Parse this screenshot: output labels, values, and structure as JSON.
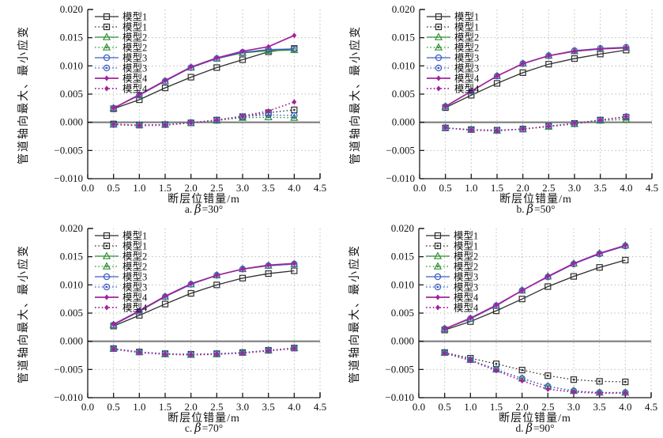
{
  "figure": {
    "y_axis_label": "管道轴向最大、最小应变",
    "x_axis_label": "断层位错量/m",
    "background": "#ffffff",
    "colors": {
      "model1": "#2d2d2d",
      "model2": "#2e9235",
      "model3": "#3c5cc5",
      "model4": "#a1249c",
      "grid": "#bcbcbc",
      "zero_line": "#7d7d7d",
      "axis": "#1a1a1a",
      "text": "#111111"
    }
  },
  "chart_data": {
    "type": "line",
    "x": [
      0.5,
      1.0,
      1.5,
      2.0,
      2.5,
      3.0,
      3.5,
      4.0
    ],
    "xlim": [
      0.0,
      4.5
    ],
    "ylim": [
      -0.01,
      0.02
    ],
    "x_tick_values": [
      0.0,
      0.5,
      1.0,
      1.5,
      2.0,
      2.5,
      3.0,
      3.5,
      4.0,
      4.5
    ],
    "x_tick_labels": [
      "0.0",
      "0.5",
      "1.0",
      "1.5",
      "2.0",
      "2.5",
      "3.0",
      "3.5",
      "4.0",
      "4.5"
    ],
    "y_tick_values": [
      -0.01,
      -0.005,
      0.0,
      0.005,
      0.01,
      0.015,
      0.02
    ],
    "y_tick_labels": [
      "−0.010",
      "−0.005",
      "0.000",
      "0.005",
      "0.010",
      "0.015",
      "0.020"
    ],
    "x_grid": [
      0.5,
      1.0,
      1.5,
      2.0,
      2.5,
      3.0,
      3.5,
      4.0,
      4.5
    ],
    "y_grid": [
      -0.005,
      0.005,
      0.01,
      0.015
    ],
    "grid_on": true,
    "legend_position": "top-left-inside",
    "series_styles": [
      {
        "name": "模型1",
        "color": "#2d2d2d",
        "dash": false,
        "marker": "square"
      },
      {
        "name": "模型1",
        "color": "#2d2d2d",
        "dash": true,
        "marker": "square-dot"
      },
      {
        "name": "模型2",
        "color": "#2e9235",
        "dash": false,
        "marker": "triangle"
      },
      {
        "name": "模型2",
        "color": "#2e9235",
        "dash": true,
        "marker": "triangle-dot"
      },
      {
        "name": "模型3",
        "color": "#3c5cc5",
        "dash": false,
        "marker": "circle"
      },
      {
        "name": "模型3",
        "color": "#3c5cc5",
        "dash": true,
        "marker": "circle-dot"
      },
      {
        "name": "模型4",
        "color": "#a1249c",
        "dash": false,
        "marker": "diamond-filled"
      },
      {
        "name": "模型4",
        "color": "#a1249c",
        "dash": true,
        "marker": "diamond-filled"
      }
    ],
    "panels": [
      {
        "cap_pre": "a.",
        "cap_beta": "β",
        "cap_rest": "=30°",
        "series": [
          {
            "name": "模型1",
            "role": "max",
            "values": [
              0.0024,
              0.004,
              0.0061,
              0.008,
              0.0097,
              0.0111,
              0.0125,
              0.0131
            ]
          },
          {
            "name": "模型1",
            "role": "min",
            "values": [
              -0.0003,
              -0.0005,
              -0.0004,
              -0.0001,
              0.0004,
              0.001,
              0.0017,
              0.0022
            ]
          },
          {
            "name": "模型2",
            "role": "max",
            "values": [
              0.0025,
              0.0048,
              0.0073,
              0.0097,
              0.0113,
              0.0123,
              0.0127,
              0.0128
            ]
          },
          {
            "name": "模型2",
            "role": "min",
            "values": [
              -0.0004,
              -0.0005,
              -0.0004,
              -0.0001,
              0.0003,
              0.0008,
              0.0009,
              0.0008
            ]
          },
          {
            "name": "模型3",
            "role": "max",
            "values": [
              0.0025,
              0.0048,
              0.0073,
              0.0097,
              0.0113,
              0.0124,
              0.0129,
              0.013
            ]
          },
          {
            "name": "模型3",
            "role": "min",
            "values": [
              -0.0004,
              -0.0005,
              -0.0004,
              -0.0001,
              0.0004,
              0.001,
              0.0013,
              0.0012
            ]
          },
          {
            "name": "模型4",
            "role": "max",
            "values": [
              0.0025,
              0.0049,
              0.0074,
              0.0098,
              0.0114,
              0.0126,
              0.0134,
              0.0154
            ]
          },
          {
            "name": "模型4",
            "role": "min",
            "values": [
              -0.0004,
              -0.0006,
              -0.0005,
              -0.0001,
              0.0004,
              0.0011,
              0.002,
              0.0036
            ]
          }
        ]
      },
      {
        "cap_pre": "b.",
        "cap_beta": "β",
        "cap_rest": "=50°",
        "series": [
          {
            "name": "模型1",
            "role": "max",
            "values": [
              0.0026,
              0.0048,
              0.0069,
              0.0088,
              0.0103,
              0.0113,
              0.0121,
              0.0128
            ]
          },
          {
            "name": "模型1",
            "role": "min",
            "values": [
              -0.001,
              -0.0013,
              -0.0014,
              -0.0012,
              -0.0007,
              -0.0002,
              0.0004,
              0.0009
            ]
          },
          {
            "name": "模型2",
            "role": "max",
            "values": [
              0.0028,
              0.0055,
              0.0082,
              0.0104,
              0.0118,
              0.0126,
              0.013,
              0.0132
            ]
          },
          {
            "name": "模型2",
            "role": "min",
            "values": [
              -0.001,
              -0.0013,
              -0.0015,
              -0.0012,
              -0.0008,
              -0.0003,
              0.0003,
              0.0005
            ]
          },
          {
            "name": "模型3",
            "role": "max",
            "values": [
              0.0028,
              0.0055,
              0.0082,
              0.0104,
              0.0118,
              0.0127,
              0.0131,
              0.0133
            ]
          },
          {
            "name": "模型3",
            "role": "min",
            "values": [
              -0.001,
              -0.0013,
              -0.0014,
              -0.0012,
              -0.0007,
              -0.0002,
              0.0004,
              0.001
            ]
          },
          {
            "name": "模型4",
            "role": "max",
            "values": [
              0.0028,
              0.0055,
              0.0082,
              0.0104,
              0.0118,
              0.0126,
              0.013,
              0.0132
            ]
          },
          {
            "name": "模型4",
            "role": "min",
            "values": [
              -0.001,
              -0.0014,
              -0.0015,
              -0.0012,
              -0.0007,
              -0.0002,
              0.0004,
              0.001
            ]
          }
        ]
      },
      {
        "cap_pre": "c.",
        "cap_beta": "β",
        "cap_rest": "=70°",
        "series": [
          {
            "name": "模型1",
            "role": "max",
            "values": [
              0.0027,
              0.0046,
              0.0066,
              0.0085,
              0.01,
              0.0112,
              0.012,
              0.0125
            ]
          },
          {
            "name": "模型1",
            "role": "min",
            "values": [
              -0.0013,
              -0.0019,
              -0.0022,
              -0.0023,
              -0.0022,
              -0.002,
              -0.0016,
              -0.0012
            ]
          },
          {
            "name": "模型2",
            "role": "max",
            "values": [
              0.0029,
              0.0053,
              0.0079,
              0.0101,
              0.0117,
              0.0128,
              0.0134,
              0.0137
            ]
          },
          {
            "name": "模型2",
            "role": "min",
            "values": [
              -0.0013,
              -0.0019,
              -0.0023,
              -0.0024,
              -0.0023,
              -0.002,
              -0.0016,
              -0.0012
            ]
          },
          {
            "name": "模型3",
            "role": "max",
            "values": [
              0.0029,
              0.0053,
              0.0079,
              0.0101,
              0.0117,
              0.0128,
              0.0134,
              0.0137
            ]
          },
          {
            "name": "模型3",
            "role": "min",
            "values": [
              -0.0013,
              -0.0019,
              -0.0022,
              -0.0023,
              -0.0022,
              -0.002,
              -0.0016,
              -0.0012
            ]
          },
          {
            "name": "模型4",
            "role": "max",
            "values": [
              0.003,
              0.0054,
              0.008,
              0.0102,
              0.0117,
              0.0128,
              0.0135,
              0.0138
            ]
          },
          {
            "name": "模型4",
            "role": "min",
            "values": [
              -0.0014,
              -0.002,
              -0.0023,
              -0.0024,
              -0.0023,
              -0.0021,
              -0.0017,
              -0.0013
            ]
          }
        ]
      },
      {
        "cap_pre": "d.",
        "cap_beta": "β",
        "cap_rest": "=90°",
        "series": [
          {
            "name": "模型1",
            "role": "max",
            "values": [
              0.002,
              0.0035,
              0.0054,
              0.0075,
              0.0097,
              0.0115,
              0.0131,
              0.0144
            ]
          },
          {
            "name": "模型1",
            "role": "min",
            "values": [
              -0.002,
              -0.003,
              -0.004,
              -0.0051,
              -0.0061,
              -0.0068,
              -0.0071,
              -0.0072
            ]
          },
          {
            "name": "模型2",
            "role": "max",
            "values": [
              0.0022,
              0.004,
              0.0063,
              0.009,
              0.0115,
              0.0138,
              0.0156,
              0.017
            ]
          },
          {
            "name": "模型2",
            "role": "min",
            "values": [
              -0.002,
              -0.0033,
              -0.005,
              -0.0066,
              -0.008,
              -0.0088,
              -0.0091,
              -0.0091
            ]
          },
          {
            "name": "模型3",
            "role": "max",
            "values": [
              0.0022,
              0.004,
              0.0063,
              0.009,
              0.0114,
              0.0137,
              0.0155,
              0.0169
            ]
          },
          {
            "name": "模型3",
            "role": "min",
            "values": [
              -0.002,
              -0.0033,
              -0.005,
              -0.0066,
              -0.008,
              -0.0088,
              -0.0091,
              -0.0091
            ]
          },
          {
            "name": "模型4",
            "role": "max",
            "values": [
              0.0022,
              0.0041,
              0.0064,
              0.009,
              0.0115,
              0.0138,
              0.0156,
              0.017
            ]
          },
          {
            "name": "模型4",
            "role": "min",
            "values": [
              -0.0021,
              -0.0034,
              -0.0052,
              -0.007,
              -0.0085,
              -0.009,
              -0.0092,
              -0.0092
            ]
          }
        ]
      }
    ]
  }
}
